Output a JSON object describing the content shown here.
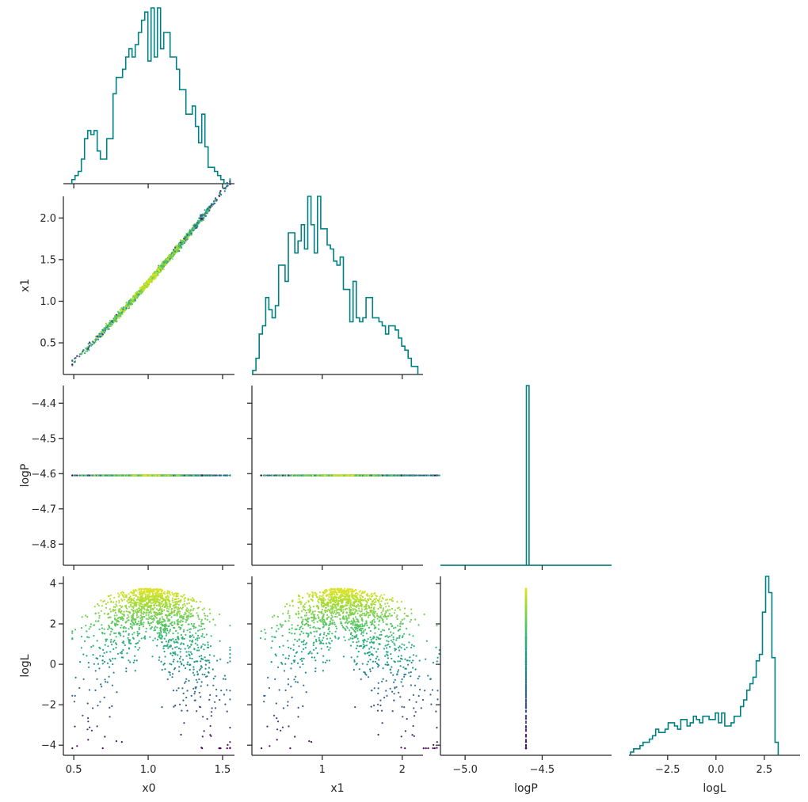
{
  "chart_data": {
    "type": "scatter",
    "title": "",
    "variables": [
      "x0",
      "x1",
      "logP",
      "logL"
    ],
    "hist_color": "#008080",
    "colormap": "viridis",
    "color_by": "logL",
    "grid": false,
    "legend": "none",
    "ranges": {
      "x0": [
        0.43,
        1.58
      ],
      "x1": [
        0.12,
        2.26
      ],
      "logP": [
        -4.86,
        -4.35
      ],
      "logP_diag": [
        -5.16,
        -4.05
      ],
      "logL": [
        -4.5,
        4.35
      ]
    },
    "ticks": {
      "x0": [
        "0.5",
        "1.0",
        "1.5"
      ],
      "x1_bottom": [
        "1",
        "2"
      ],
      "x1_left": [
        "0.5",
        "1.0",
        "1.5",
        "2.0"
      ],
      "logP_left": [
        "−4.4",
        "−4.5",
        "−4.6",
        "−4.7",
        "−4.8"
      ],
      "logP_bottom": [
        "−5.0",
        "−4.5"
      ],
      "logL_left": [
        "4",
        "2",
        "0",
        "−2",
        "−4"
      ],
      "logL_bottom": [
        "−2.5",
        "0.0",
        "2.5"
      ]
    },
    "axis_labels": {
      "x0": "x0",
      "x1": "x1",
      "logP": "logP",
      "logL": "logL"
    },
    "histograms": {
      "x0": {
        "edges_start": 0.487,
        "bin_width": 0.0213,
        "counts": [
          1,
          2,
          3,
          6,
          11,
          13,
          12,
          13,
          8,
          6,
          6,
          11,
          11,
          22,
          26,
          26,
          28,
          31,
          33,
          31,
          34,
          37,
          40,
          42,
          30,
          43,
          31,
          43,
          33,
          37,
          37,
          31,
          31,
          28,
          23,
          23,
          17,
          17,
          19,
          14,
          10,
          17,
          9,
          4,
          4,
          3,
          2,
          1,
          0
        ]
      },
      "x1": {
        "edges_start": 0.13,
        "bin_width": 0.0405,
        "counts": [
          1,
          4,
          10,
          12,
          19,
          16,
          14,
          17,
          27,
          27,
          23,
          35,
          35,
          30,
          33,
          37,
          31,
          44,
          37,
          30,
          44,
          36,
          36,
          32,
          31,
          28,
          27,
          29,
          21,
          21,
          13,
          23,
          14,
          13,
          14,
          19,
          19,
          14,
          14,
          13,
          12,
          10,
          12,
          12,
          11,
          9,
          7,
          6,
          4,
          2,
          2
        ]
      },
      "logP": {
        "edges_start": -4.62,
        "bin_width": 0.0175,
        "counts": [
          0,
          100,
          0
        ]
      },
      "logL": {
        "edges_start": -4.42,
        "bin_width": 0.1625,
        "counts": [
          1,
          2,
          2,
          3,
          4,
          4,
          5,
          6,
          8,
          7,
          7,
          8,
          10,
          10,
          9,
          8,
          11,
          11,
          9,
          10,
          12,
          11,
          10,
          12,
          12,
          11,
          11,
          13,
          10,
          13,
          9,
          9,
          10,
          12,
          12,
          15,
          17,
          20,
          22,
          24,
          29,
          31,
          44,
          55,
          50,
          30,
          4
        ]
      }
    },
    "samples": {
      "count": 1500,
      "logP_value": -4.605,
      "x1_vs_x0": "x1 ≈ 0.28 + 1.74·(x0 − 0.5) + 0.3·(x0 − 0.5)², thin band",
      "logL_upper_envelope": "≈ 3.7 near x0 = 1.0, falling to ≈ 2.5 at x0 = 0.6 and x0 = 1.5"
    }
  }
}
